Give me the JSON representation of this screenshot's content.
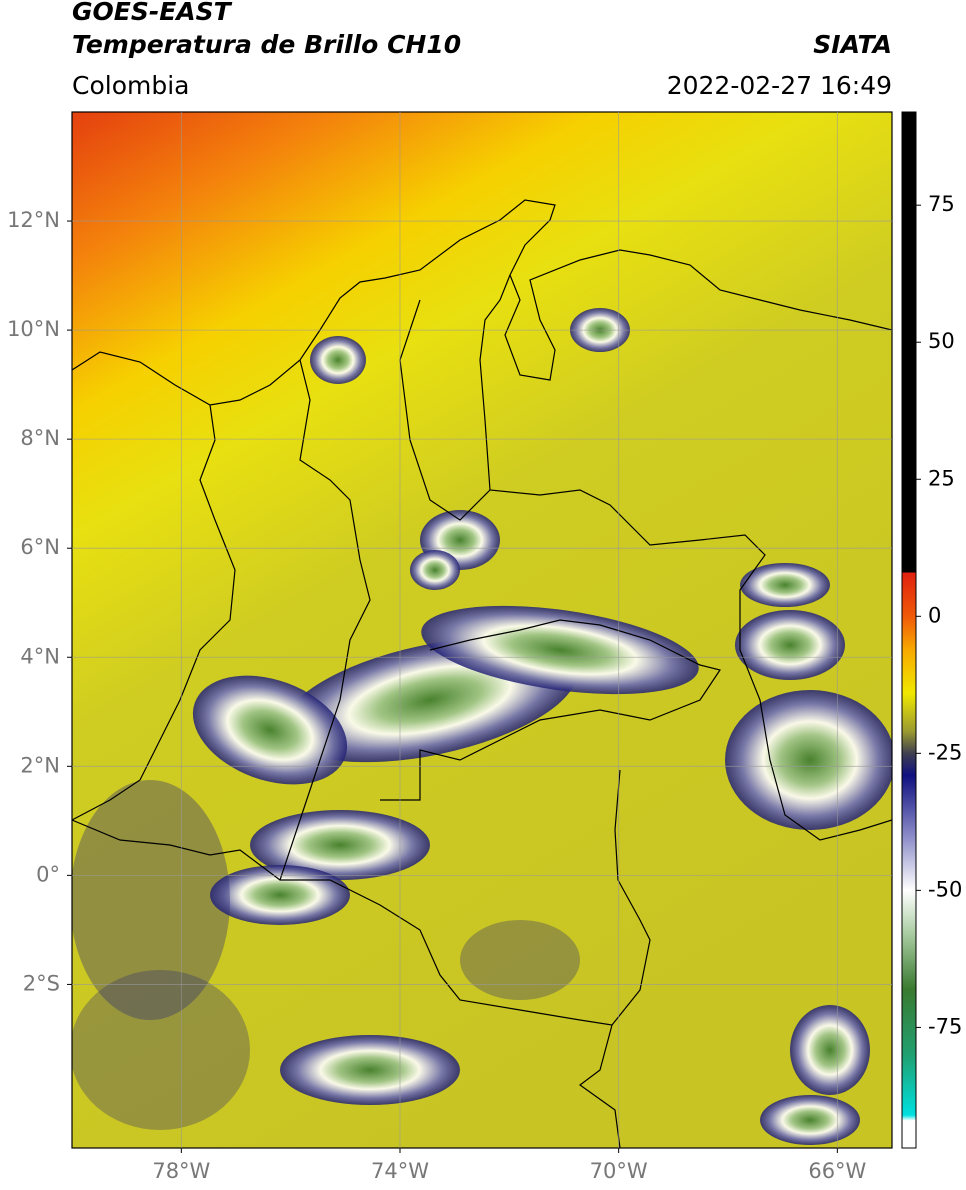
{
  "chart_data": {
    "type": "map",
    "title": "GOES-EAST",
    "subtitle": "Temperatura de Brillo CH10",
    "source": "SIATA",
    "region": "Colombia",
    "datetime": "2022-02-27 16:49",
    "xlim": [
      -80,
      -65
    ],
    "ylim": [
      -5,
      14
    ],
    "xticks": [
      {
        "value": -78,
        "label": "78°W"
      },
      {
        "value": -74,
        "label": "74°W"
      },
      {
        "value": -70,
        "label": "70°W"
      },
      {
        "value": -66,
        "label": "66°W"
      }
    ],
    "yticks": [
      {
        "value": 12,
        "label": "12°N"
      },
      {
        "value": 10,
        "label": "10°N"
      },
      {
        "value": 8,
        "label": "8°N"
      },
      {
        "value": 6,
        "label": "6°N"
      },
      {
        "value": 4,
        "label": "4°N"
      },
      {
        "value": 2,
        "label": "2°N"
      },
      {
        "value": 0,
        "label": "0°"
      },
      {
        "value": -2,
        "label": "2°S"
      }
    ],
    "grid": true,
    "colorbar": {
      "clim": [
        -97,
        92
      ],
      "ticks": [
        75,
        50,
        25,
        0,
        -25,
        -50,
        -75
      ],
      "colormap": [
        {
          "value": 92,
          "color": "#000000"
        },
        {
          "value": 8,
          "color": "#000000"
        },
        {
          "value": 8,
          "color": "#e02010"
        },
        {
          "value": 0,
          "color": "#f05a08"
        },
        {
          "value": -6,
          "color": "#f8a800"
        },
        {
          "value": -14,
          "color": "#f0e800"
        },
        {
          "value": -21,
          "color": "#9a9a30"
        },
        {
          "value": -25,
          "color": "#404050"
        },
        {
          "value": -29,
          "color": "#101080"
        },
        {
          "value": -40,
          "color": "#8a8ac8"
        },
        {
          "value": -50,
          "color": "#ffffff"
        },
        {
          "value": -58,
          "color": "#a8cca0"
        },
        {
          "value": -68,
          "color": "#3a7a30"
        },
        {
          "value": -80,
          "color": "#20a070"
        },
        {
          "value": -91,
          "color": "#00e0e0"
        },
        {
          "value": -92,
          "color": "#ffffff"
        },
        {
          "value": -97,
          "color": "#ffffff"
        }
      ]
    }
  }
}
